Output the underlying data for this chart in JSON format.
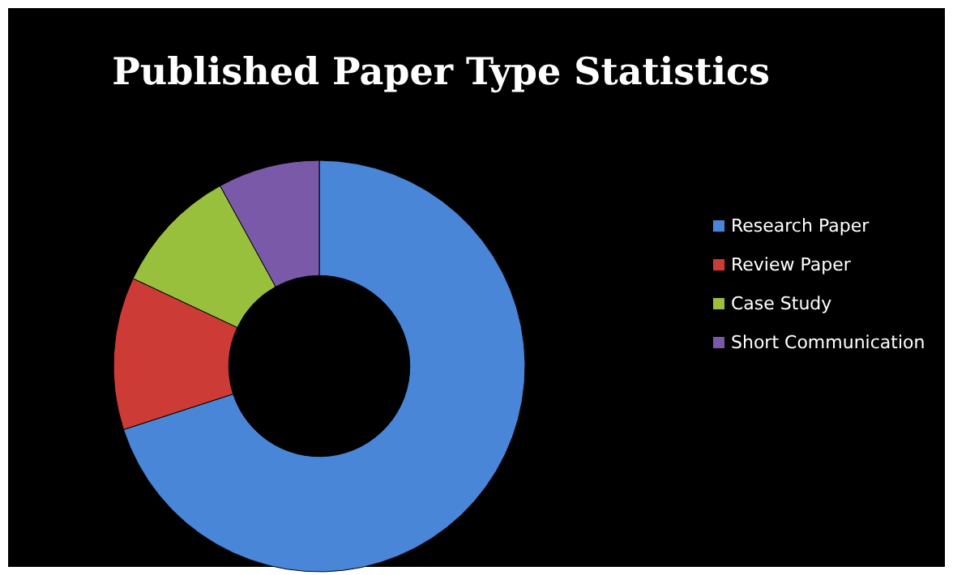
{
  "chart_data": {
    "type": "donut",
    "title": "Published Paper Type Statistics",
    "categories": [
      "Research Paper",
      "Review Paper",
      "Case Study",
      "Short Communication"
    ],
    "values": [
      70,
      12,
      10,
      8
    ],
    "colors": [
      "#4a86d8",
      "#cc3b36",
      "#98c03c",
      "#7a5aa8"
    ],
    "legend": "right"
  }
}
